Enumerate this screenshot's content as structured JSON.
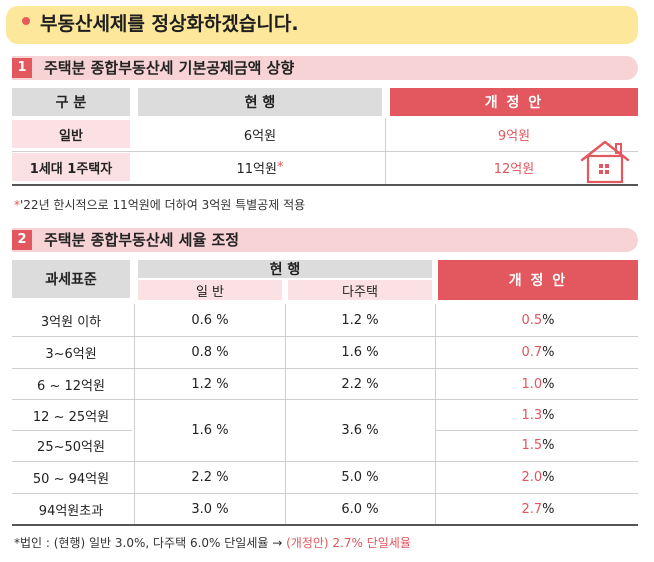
{
  "title": "부동산세제를 정상화하겠습니다.",
  "section1": {
    "number": "1",
    "title": "주택분 종합부동산세 기본공제금액 상향",
    "headers": {
      "category": "구 분",
      "current": "현 행",
      "proposal": "개 정 안"
    },
    "rows": [
      {
        "label": "일반",
        "current": "6억원",
        "proposal": "9억원"
      },
      {
        "label": "1세대 1주택자",
        "current": "11억원",
        "current_mark": "*",
        "proposal": "12억원"
      }
    ],
    "note_mark": "*",
    "note": "'22년 한시적으로 11억원에 더하여 3억원 특별공제 적용"
  },
  "section2": {
    "number": "2",
    "title": "주택분 종합부동산세 세율 조정",
    "headers": {
      "base": "과세표준",
      "current": "현 행",
      "general": "일 반",
      "multi": "다주택",
      "proposal": "개 정 안"
    },
    "rows": [
      {
        "base": "3억원 이하",
        "general": "0.6 %",
        "multi": "1.2 %",
        "proposal_num": "0.5",
        "proposal_unit": " %"
      },
      {
        "base": "3~6억원",
        "general": "0.8 %",
        "multi": "1.6 %",
        "proposal_num": "0.7",
        "proposal_unit": " %"
      },
      {
        "base": "6 ~ 12억원",
        "general": "1.2 %",
        "multi": "2.2 %",
        "proposal_num": "1.0",
        "proposal_unit": " %"
      },
      {
        "base": "12 ~ 25억원",
        "proposal_num": "1.3",
        "proposal_unit": " %"
      },
      {
        "base": "25~50억원",
        "proposal_num": "1.5",
        "proposal_unit": " %"
      },
      {
        "base": "50 ~ 94억원",
        "general": "2.2 %",
        "multi": "5.0 %",
        "proposal_num": "2.0",
        "proposal_unit": " %"
      },
      {
        "base": "94억원초과",
        "general": "3.0 %",
        "multi": "6.0 %",
        "proposal_num": "2.7",
        "proposal_unit": " %"
      }
    ],
    "merged_general": "1.6 %",
    "merged_multi": "3.6 %",
    "note_prefix": "*법인 : (현행) 일반 3.0%, 다주택 6.0% 단일세율 →",
    "note_highlight": "(개정안) 2.7% 단일세율"
  },
  "colors": {
    "accent": "#e3585f",
    "pink": "#fbe1e3",
    "banner": "#fde79a"
  },
  "icons": [
    "house-icon"
  ]
}
